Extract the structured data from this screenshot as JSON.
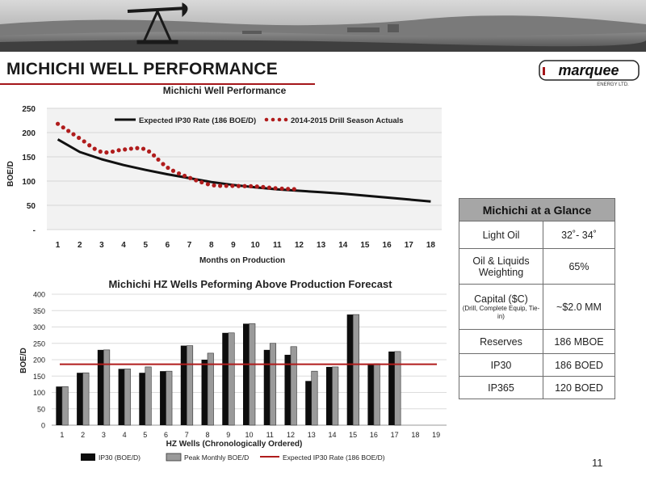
{
  "page": {
    "title": "MICHICHI WELL PERFORMANCE",
    "page_number": "11",
    "accent_color": "#a4161a"
  },
  "logo": {
    "text": "marquee",
    "tagline": "ENERGY LTD."
  },
  "glance_table": {
    "header": "Michichi at a Glance",
    "rows": [
      {
        "label": "Light Oil",
        "value": "32˚- 34˚"
      },
      {
        "label": "Oil & Liquids Weighting",
        "value": "65%"
      },
      {
        "label": "Capital ($C)",
        "sublabel": "(Drill, Complete Equip, Tie-in)",
        "value": "~$2.0 MM"
      },
      {
        "label": "Reserves",
        "value": "186 MBOE"
      },
      {
        "label": "IP30",
        "value": "186 BOED"
      },
      {
        "label": "IP365",
        "value": "120 BOED"
      }
    ]
  },
  "chart_data": [
    {
      "type": "line",
      "title": "Michichi Well Performance",
      "xlabel": "Months on Production",
      "ylabel": "BOE/D",
      "x": [
        1,
        2,
        3,
        4,
        5,
        6,
        7,
        8,
        9,
        10,
        11,
        12,
        13,
        14,
        15,
        16,
        17,
        18
      ],
      "ylim": [
        0,
        250
      ],
      "yticks": [
        "-",
        "50",
        "100",
        "150",
        "200",
        "250"
      ],
      "grid": true,
      "legend": "top",
      "series": [
        {
          "name": "Expected IP30 Rate (186 BOE/D)",
          "style": "solid",
          "color": "#111111",
          "values": [
            186,
            160,
            145,
            133,
            123,
            114,
            106,
            98,
            92,
            87,
            83,
            80,
            77,
            74,
            70,
            66,
            62,
            58
          ]
        },
        {
          "name": "2014-2015 Drill Season Actuals",
          "style": "dotted",
          "color": "#b01c1c",
          "values": [
            218,
            188,
            160,
            165,
            165,
            128,
            107,
            92,
            90,
            89,
            85,
            83,
            null,
            null,
            null,
            null,
            null,
            null
          ]
        }
      ]
    },
    {
      "type": "bar",
      "title": "Michichi HZ Wells Peforming Above Production Forecast",
      "xlabel": "HZ Wells (Chronologically Ordered)",
      "ylabel": "BOE/D",
      "categories": [
        "1",
        "2",
        "3",
        "4",
        "5",
        "6",
        "7",
        "8",
        "9",
        "10",
        "11",
        "12",
        "13",
        "14",
        "15",
        "16",
        "17",
        "18",
        "19"
      ],
      "ylim": [
        0,
        400
      ],
      "yticks": [
        "0",
        "50",
        "100",
        "150",
        "200",
        "250",
        "300",
        "350",
        "400"
      ],
      "grid": true,
      "legend": "bottom",
      "reference_line": {
        "name": "Expected IP30 Rate  (186 BOE/D)",
        "value": 186,
        "color": "#b01c1c"
      },
      "series": [
        {
          "name": "IP30 (BOE/D)",
          "color": "#0d0d0d",
          "values": [
            118,
            160,
            230,
            172,
            160,
            165,
            243,
            200,
            282,
            310,
            230,
            215,
            135,
            178,
            338,
            188,
            225,
            null,
            null
          ]
        },
        {
          "name": "Peak Monthly BOE/D",
          "color": "#9a9a9a",
          "values": [
            118,
            160,
            230,
            172,
            178,
            165,
            243,
            220,
            282,
            310,
            250,
            240,
            165,
            178,
            338,
            188,
            225,
            null,
            null
          ]
        }
      ]
    }
  ]
}
